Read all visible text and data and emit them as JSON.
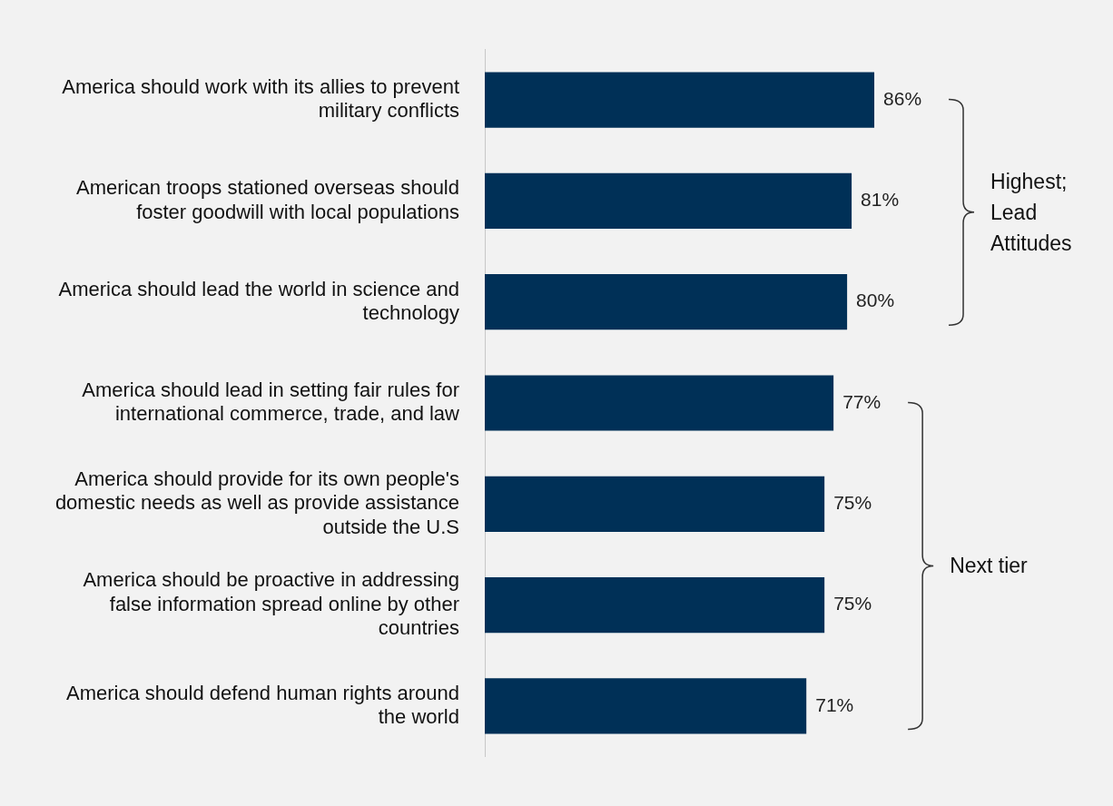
{
  "chart_data": {
    "type": "bar",
    "orientation": "horizontal",
    "categories": [
      "America should work with its allies to prevent military conflicts",
      "American troops stationed overseas should foster goodwill with local populations",
      "America should lead the world in science and technology",
      "America should lead in setting fair rules for international commerce, trade, and law",
      "America should provide for its own people's domestic needs as well as provide assistance outside the U.S",
      "America should be proactive in addressing false information spread online by other countries",
      "America should defend human rights around the world"
    ],
    "values": [
      86,
      81,
      80,
      77,
      75,
      75,
      71
    ],
    "value_labels": [
      "86%",
      "81%",
      "80%",
      "77%",
      "75%",
      "75%",
      "71%"
    ],
    "color": "#003057",
    "tick_labels": "y",
    "legend": false,
    "annotations": [
      "Highest; Lead Attitudes",
      "Next tier"
    ]
  }
}
